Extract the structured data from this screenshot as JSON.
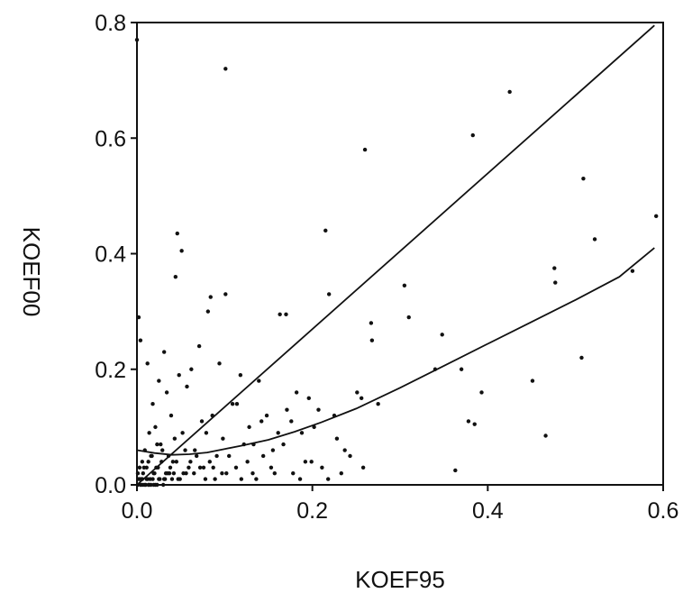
{
  "chart_data": {
    "type": "scatter",
    "title": "",
    "xlabel": "KOEF95",
    "ylabel": "KOEF00",
    "xlim": [
      0,
      0.6
    ],
    "ylim": [
      0,
      0.8
    ],
    "x_ticks": [
      "0.0",
      "0.2",
      "0.4",
      "0.6"
    ],
    "y_ticks": [
      "0.0",
      "0.2",
      "0.4",
      "0.6",
      "0.8"
    ],
    "grid": false,
    "legend": "none",
    "colors": {
      "points": "#111111",
      "lines": "#111111",
      "frame": "#111111"
    },
    "series": [
      {
        "kind": "points",
        "x": [
          0.0,
          0.101,
          0.425,
          0.383,
          0.26,
          0.509,
          0.592,
          0.522,
          0.046,
          0.051,
          0.044,
          0.215,
          0.476,
          0.565,
          0.477,
          0.305,
          0.081,
          0.101,
          0.219,
          0.267,
          0.31,
          0.163,
          0.17,
          0.268,
          0.348,
          0.084,
          0.002,
          0.004,
          0.507,
          0.34,
          0.37,
          0.451,
          0.393,
          0.378,
          0.385,
          0.466,
          0.363,
          0.251,
          0.256,
          0.275,
          0.012,
          0.025,
          0.031,
          0.062,
          0.071,
          0.094,
          0.118,
          0.139,
          0.182,
          0.196,
          0.207,
          0.225,
          0.018,
          0.034,
          0.048,
          0.057,
          0.086,
          0.109,
          0.128,
          0.148,
          0.161,
          0.176,
          0.021,
          0.039,
          0.052,
          0.074,
          0.098,
          0.122,
          0.014,
          0.027,
          0.043,
          0.066,
          0.079,
          0.105,
          0.133,
          0.155,
          0.009,
          0.016,
          0.023,
          0.029,
          0.036,
          0.041,
          0.055,
          0.061,
          0.068,
          0.076,
          0.083,
          0.091,
          0.006,
          0.011,
          0.017,
          0.022,
          0.028,
          0.033,
          0.038,
          0.045,
          0.053,
          0.059,
          0.065,
          0.072,
          0.003,
          0.007,
          0.013,
          0.019,
          0.024,
          0.032,
          0.037,
          0.042,
          0.049,
          0.056,
          0.001,
          0.005,
          0.008,
          0.015,
          0.02,
          0.026,
          0.031,
          0.035,
          0.04,
          0.047,
          0.002,
          0.004,
          0.006,
          0.01,
          0.012,
          0.014,
          0.018,
          0.021,
          0.025,
          0.03,
          0.001,
          0.003,
          0.005,
          0.007,
          0.009,
          0.011,
          0.013,
          0.016,
          0.019,
          0.023,
          0.114,
          0.142,
          0.171,
          0.188,
          0.202,
          0.228,
          0.237,
          0.192,
          0.144,
          0.167,
          0.126,
          0.113,
          0.097,
          0.087,
          0.132,
          0.153,
          0.178,
          0.199,
          0.211,
          0.243,
          0.258,
          0.233,
          0.218,
          0.186,
          0.157,
          0.136,
          0.119,
          0.102,
          0.089,
          0.078
        ],
        "y": [
          0.77,
          0.72,
          0.68,
          0.605,
          0.58,
          0.53,
          0.465,
          0.425,
          0.435,
          0.405,
          0.36,
          0.44,
          0.375,
          0.37,
          0.35,
          0.345,
          0.3,
          0.33,
          0.33,
          0.28,
          0.29,
          0.295,
          0.295,
          0.25,
          0.26,
          0.325,
          0.29,
          0.25,
          0.22,
          0.2,
          0.2,
          0.18,
          0.16,
          0.11,
          0.105,
          0.085,
          0.025,
          0.16,
          0.15,
          0.14,
          0.21,
          0.18,
          0.23,
          0.2,
          0.24,
          0.21,
          0.19,
          0.18,
          0.16,
          0.15,
          0.13,
          0.12,
          0.14,
          0.16,
          0.19,
          0.17,
          0.12,
          0.14,
          0.1,
          0.12,
          0.09,
          0.11,
          0.1,
          0.12,
          0.09,
          0.11,
          0.08,
          0.07,
          0.09,
          0.07,
          0.08,
          0.06,
          0.09,
          0.05,
          0.07,
          0.06,
          0.06,
          0.05,
          0.07,
          0.06,
          0.05,
          0.04,
          0.06,
          0.04,
          0.05,
          0.03,
          0.04,
          0.05,
          0.04,
          0.03,
          0.05,
          0.03,
          0.04,
          0.02,
          0.03,
          0.04,
          0.02,
          0.03,
          0.02,
          0.03,
          0.03,
          0.02,
          0.04,
          0.02,
          0.03,
          0.01,
          0.02,
          0.02,
          0.01,
          0.02,
          0.02,
          0.01,
          0.03,
          0.01,
          0.02,
          0.01,
          0.01,
          0.02,
          0.01,
          0.01,
          0.01,
          0.0,
          0.01,
          0.0,
          0.01,
          0.0,
          0.01,
          0.0,
          0.01,
          0.0,
          0.0,
          0.01,
          0.0,
          0.0,
          0.0,
          0.01,
          0.0,
          0.0,
          0.0,
          0.0,
          0.14,
          0.11,
          0.13,
          0.09,
          0.1,
          0.08,
          0.06,
          0.04,
          0.05,
          0.07,
          0.04,
          0.03,
          0.02,
          0.03,
          0.02,
          0.03,
          0.02,
          0.04,
          0.03,
          0.05,
          0.03,
          0.02,
          0.01,
          0.01,
          0.02,
          0.01,
          0.01,
          0.02,
          0.01,
          0.01
        ]
      },
      {
        "kind": "line",
        "x": [
          0.0,
          0.59
        ],
        "y": [
          0.0,
          0.795
        ]
      },
      {
        "kind": "line",
        "x": [
          0.0,
          0.02,
          0.04,
          0.06,
          0.08,
          0.1,
          0.12,
          0.15,
          0.18,
          0.21,
          0.25,
          0.3,
          0.35,
          0.4,
          0.45,
          0.5,
          0.55,
          0.59
        ],
        "y": [
          0.06,
          0.055,
          0.052,
          0.053,
          0.056,
          0.062,
          0.068,
          0.078,
          0.092,
          0.108,
          0.132,
          0.168,
          0.206,
          0.244,
          0.282,
          0.32,
          0.36,
          0.41
        ]
      }
    ]
  }
}
